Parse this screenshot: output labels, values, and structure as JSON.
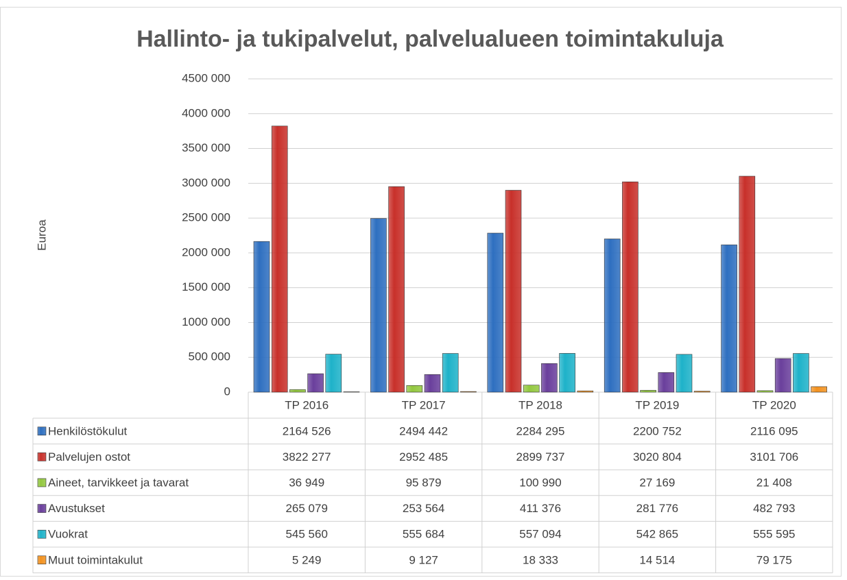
{
  "chart_data": {
    "type": "bar",
    "title": "Hallinto- ja tukipalvelut, palvelualueen toimintakuluja",
    "y_label": "Euroa",
    "categories": [
      "TP 2016",
      "TP 2017",
      "TP 2018",
      "TP 2019",
      "TP 2020"
    ],
    "series": [
      {
        "name": "Henkilöstökulut",
        "color": "#2e6fc0",
        "values": [
          2164526,
          2494442,
          2284295,
          2200752,
          2116095
        ],
        "value_labels": [
          "2164 526",
          "2494 442",
          "2284 295",
          "2200 752",
          "2116 095"
        ]
      },
      {
        "name": "Palvelujen ostot",
        "color": "#c8302a",
        "values": [
          3822277,
          2952485,
          2899737,
          3020804,
          3101706
        ],
        "value_labels": [
          "3822 277",
          "2952 485",
          "2899 737",
          "3020 804",
          "3101 706"
        ]
      },
      {
        "name": "Aineet, tarvikkeet ja tavarat",
        "color": "#93c83f",
        "values": [
          36949,
          95879,
          100990,
          27169,
          21408
        ],
        "value_labels": [
          "36 949",
          "95 879",
          "100 990",
          "27 169",
          "21 408"
        ]
      },
      {
        "name": "Avustukset",
        "color": "#6a3f9c",
        "values": [
          265079,
          253564,
          411376,
          281776,
          482793
        ],
        "value_labels": [
          "265 079",
          "253 564",
          "411 376",
          "281 776",
          "482 793"
        ]
      },
      {
        "name": "Vuokrat",
        "color": "#1eb2c9",
        "values": [
          545560,
          555684,
          557094,
          542865,
          555595
        ],
        "value_labels": [
          "545 560",
          "555 684",
          "557 094",
          "542 865",
          "555 595"
        ]
      },
      {
        "name": "Muut toimintakulut",
        "color": "#f3921f",
        "values": [
          5249,
          9127,
          18333,
          14514,
          79175
        ],
        "value_labels": [
          "5 249",
          "9 127",
          "18 333",
          "14 514",
          "79 175"
        ]
      }
    ],
    "ylim": [
      0,
      4500000
    ],
    "yticks": [
      0,
      {
        "value": 500000,
        "label": "500 000"
      },
      {
        "value": 1000000,
        "label": "1000 000"
      },
      {
        "value": 1500000,
        "label": "1500 000"
      },
      {
        "value": 2000000,
        "label": "2000 000"
      },
      {
        "value": 2500000,
        "label": "2500 000"
      },
      {
        "value": 3000000,
        "label": "3000 000"
      },
      {
        "value": 3500000,
        "label": "3500 000"
      },
      {
        "value": 4000000,
        "label": "4000 000"
      },
      {
        "value": 4500000,
        "label": "4500 000"
      }
    ],
    "grid": true
  }
}
